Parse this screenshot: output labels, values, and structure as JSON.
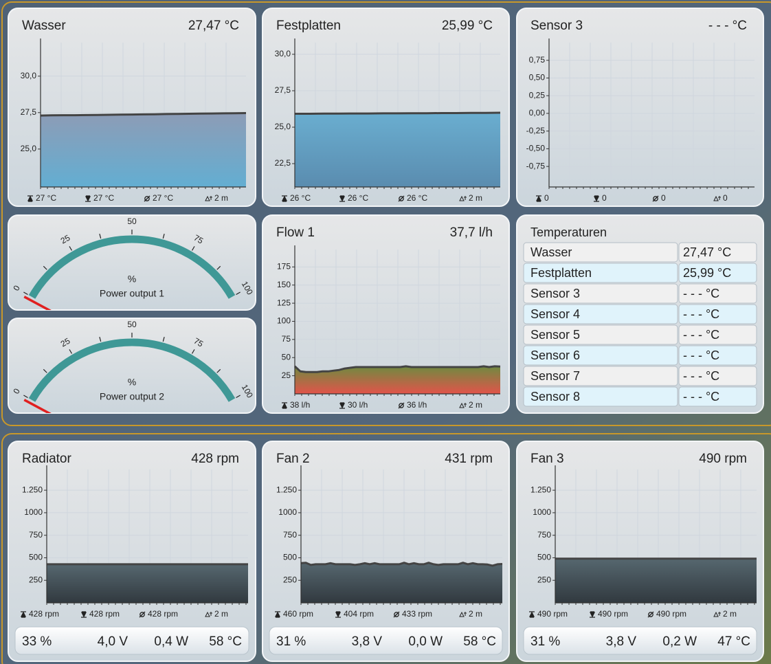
{
  "charts": [
    {
      "title": "Wasser",
      "reading": "27,47 °C",
      "ylim": [
        22.4,
        32.3
      ],
      "yticks": [
        {
          "value": 25,
          "label": "25,0"
        },
        {
          "value": 27.5,
          "label": "27,5"
        },
        {
          "value": 30,
          "label": "30,0"
        }
      ],
      "values": [
        27.3,
        27.31,
        27.32,
        27.32,
        27.33,
        27.34,
        27.35,
        27.36,
        27.37,
        27.38,
        27.39,
        27.4,
        27.41,
        27.42,
        27.43,
        27.44,
        27.45,
        27.46,
        27.47
      ],
      "fill": [
        "#8d9cb6",
        "#63aed2"
      ],
      "stats": [
        "27 °C",
        "27 °C",
        "27 °C",
        "2 m"
      ]
    },
    {
      "title": "Festplatten",
      "reading": "25,99 °C",
      "ylim": [
        20.9,
        30.8
      ],
      "yticks": [
        {
          "value": 22.5,
          "label": "22,5"
        },
        {
          "value": 25,
          "label": "25,0"
        },
        {
          "value": 27.5,
          "label": "27,5"
        },
        {
          "value": 30,
          "label": "30,0"
        }
      ],
      "values": [
        25.92,
        25.92,
        25.93,
        25.93,
        25.94,
        25.94,
        25.95,
        25.95,
        25.96,
        25.96,
        25.97,
        25.97,
        25.98,
        25.98,
        25.99
      ],
      "fill": [
        "#6aaed0",
        "#5a8caf"
      ],
      "stats": [
        "26 °C",
        "26 °C",
        "26 °C",
        "2 m"
      ]
    },
    {
      "title": "Sensor 3",
      "reading": "- - - °C",
      "ylim": [
        -1.04,
        1.0
      ],
      "yticks": [
        {
          "value": -0.75,
          "label": "-0,75"
        },
        {
          "value": -0.5,
          "label": "-0,50"
        },
        {
          "value": -0.25,
          "label": "-0,25"
        },
        {
          "value": 0,
          "label": "0,00"
        },
        {
          "value": 0.25,
          "label": "0,25"
        },
        {
          "value": 0.5,
          "label": "0,50"
        },
        {
          "value": 0.75,
          "label": "0,75"
        }
      ],
      "values": [],
      "fill": [
        "#6aaed0",
        "#5a8caf"
      ],
      "stats": [
        "0",
        "0",
        "0",
        "0"
      ]
    },
    {
      "title": "Flow 1",
      "reading": "37,7 l/h",
      "ylim": [
        0,
        199
      ],
      "yticks": [
        25,
        50,
        75,
        100,
        125,
        150,
        175
      ],
      "values": [
        38,
        31,
        30,
        30,
        30,
        31,
        31,
        32,
        33,
        35,
        36,
        37,
        37,
        37,
        37,
        37,
        37,
        37,
        37,
        37,
        38,
        37,
        37,
        37,
        37,
        37,
        37,
        37,
        37,
        37,
        37,
        37,
        37,
        37,
        38,
        37,
        38,
        37.7
      ],
      "fill": [
        "#6f8a40",
        "#e2544a"
      ],
      "stats": [
        "38 l/h",
        "30 l/h",
        "36 l/h",
        "2 m"
      ]
    },
    {
      "title": "Radiator",
      "reading": "428 rpm",
      "ylim": [
        0,
        1480
      ],
      "yticks": [
        250,
        500,
        750,
        1000,
        {
          "value": 1250,
          "label": "1.250"
        }
      ],
      "values": [
        428,
        428,
        428,
        428,
        428
      ],
      "fill": [
        "#56676f",
        "#31393f"
      ],
      "stats": [
        "428 rpm",
        "428 rpm",
        "428 rpm",
        "2 m"
      ],
      "footer": [
        "33 %",
        "4,0 V",
        "0,4 W",
        "58 °C"
      ]
    },
    {
      "title": "Fan 2",
      "reading": "431 rpm",
      "ylim": [
        0,
        1480
      ],
      "yticks": [
        250,
        500,
        750,
        1000,
        {
          "value": 1250,
          "label": "1.250"
        }
      ],
      "values": [
        440,
        445,
        420,
        428,
        428,
        428,
        440,
        428,
        428,
        428,
        428,
        420,
        428,
        440,
        428,
        440,
        428,
        428,
        428,
        428,
        428,
        445,
        428,
        440,
        428,
        428,
        445,
        428,
        420,
        428,
        428,
        428,
        428,
        445,
        428,
        440,
        428,
        428,
        425,
        412,
        428,
        431
      ],
      "fill": [
        "#56676f",
        "#31393f"
      ],
      "stats": [
        "460 rpm",
        "404 rpm",
        "433 rpm",
        "2 m"
      ],
      "footer": [
        "31 %",
        "3,8 V",
        "0,0 W",
        "58 °C"
      ]
    },
    {
      "title": "Fan 3",
      "reading": "490 rpm",
      "ylim": [
        0,
        1480
      ],
      "yticks": [
        250,
        500,
        750,
        1000,
        {
          "value": 1250,
          "label": "1.250"
        }
      ],
      "values": [
        490,
        490,
        490,
        490,
        490
      ],
      "fill": [
        "#56676f",
        "#31393f"
      ],
      "stats": [
        "490 rpm",
        "490 rpm",
        "490 rpm",
        "2 m"
      ],
      "footer": [
        "31 %",
        "3,8 V",
        "0,2 W",
        "47 °C"
      ]
    }
  ],
  "gauges": [
    {
      "label": "Power output 1",
      "unit": "%",
      "value": 0,
      "range": [
        0,
        100
      ],
      "ticks": [
        0,
        25,
        50,
        75,
        100
      ],
      "color": "#3f9896",
      "needle_color": "#e02020"
    },
    {
      "label": "Power output 2",
      "unit": "%",
      "value": 0,
      "range": [
        0,
        100
      ],
      "ticks": [
        0,
        25,
        50,
        75,
        100
      ],
      "color": "#3f9896",
      "needle_color": "#e02020"
    }
  ],
  "table": {
    "title": "Temperaturen",
    "rows": [
      [
        "Wasser",
        "27,47 °C"
      ],
      [
        "Festplatten",
        "25,99 °C"
      ],
      [
        "Sensor 3",
        "- - - °C"
      ],
      [
        "Sensor 4",
        "- - - °C"
      ],
      [
        "Sensor 5",
        "- - - °C"
      ],
      [
        "Sensor 6",
        "- - - °C"
      ],
      [
        "Sensor 7",
        "- - - °C"
      ],
      [
        "Sensor 8",
        "- - - °C"
      ]
    ]
  }
}
